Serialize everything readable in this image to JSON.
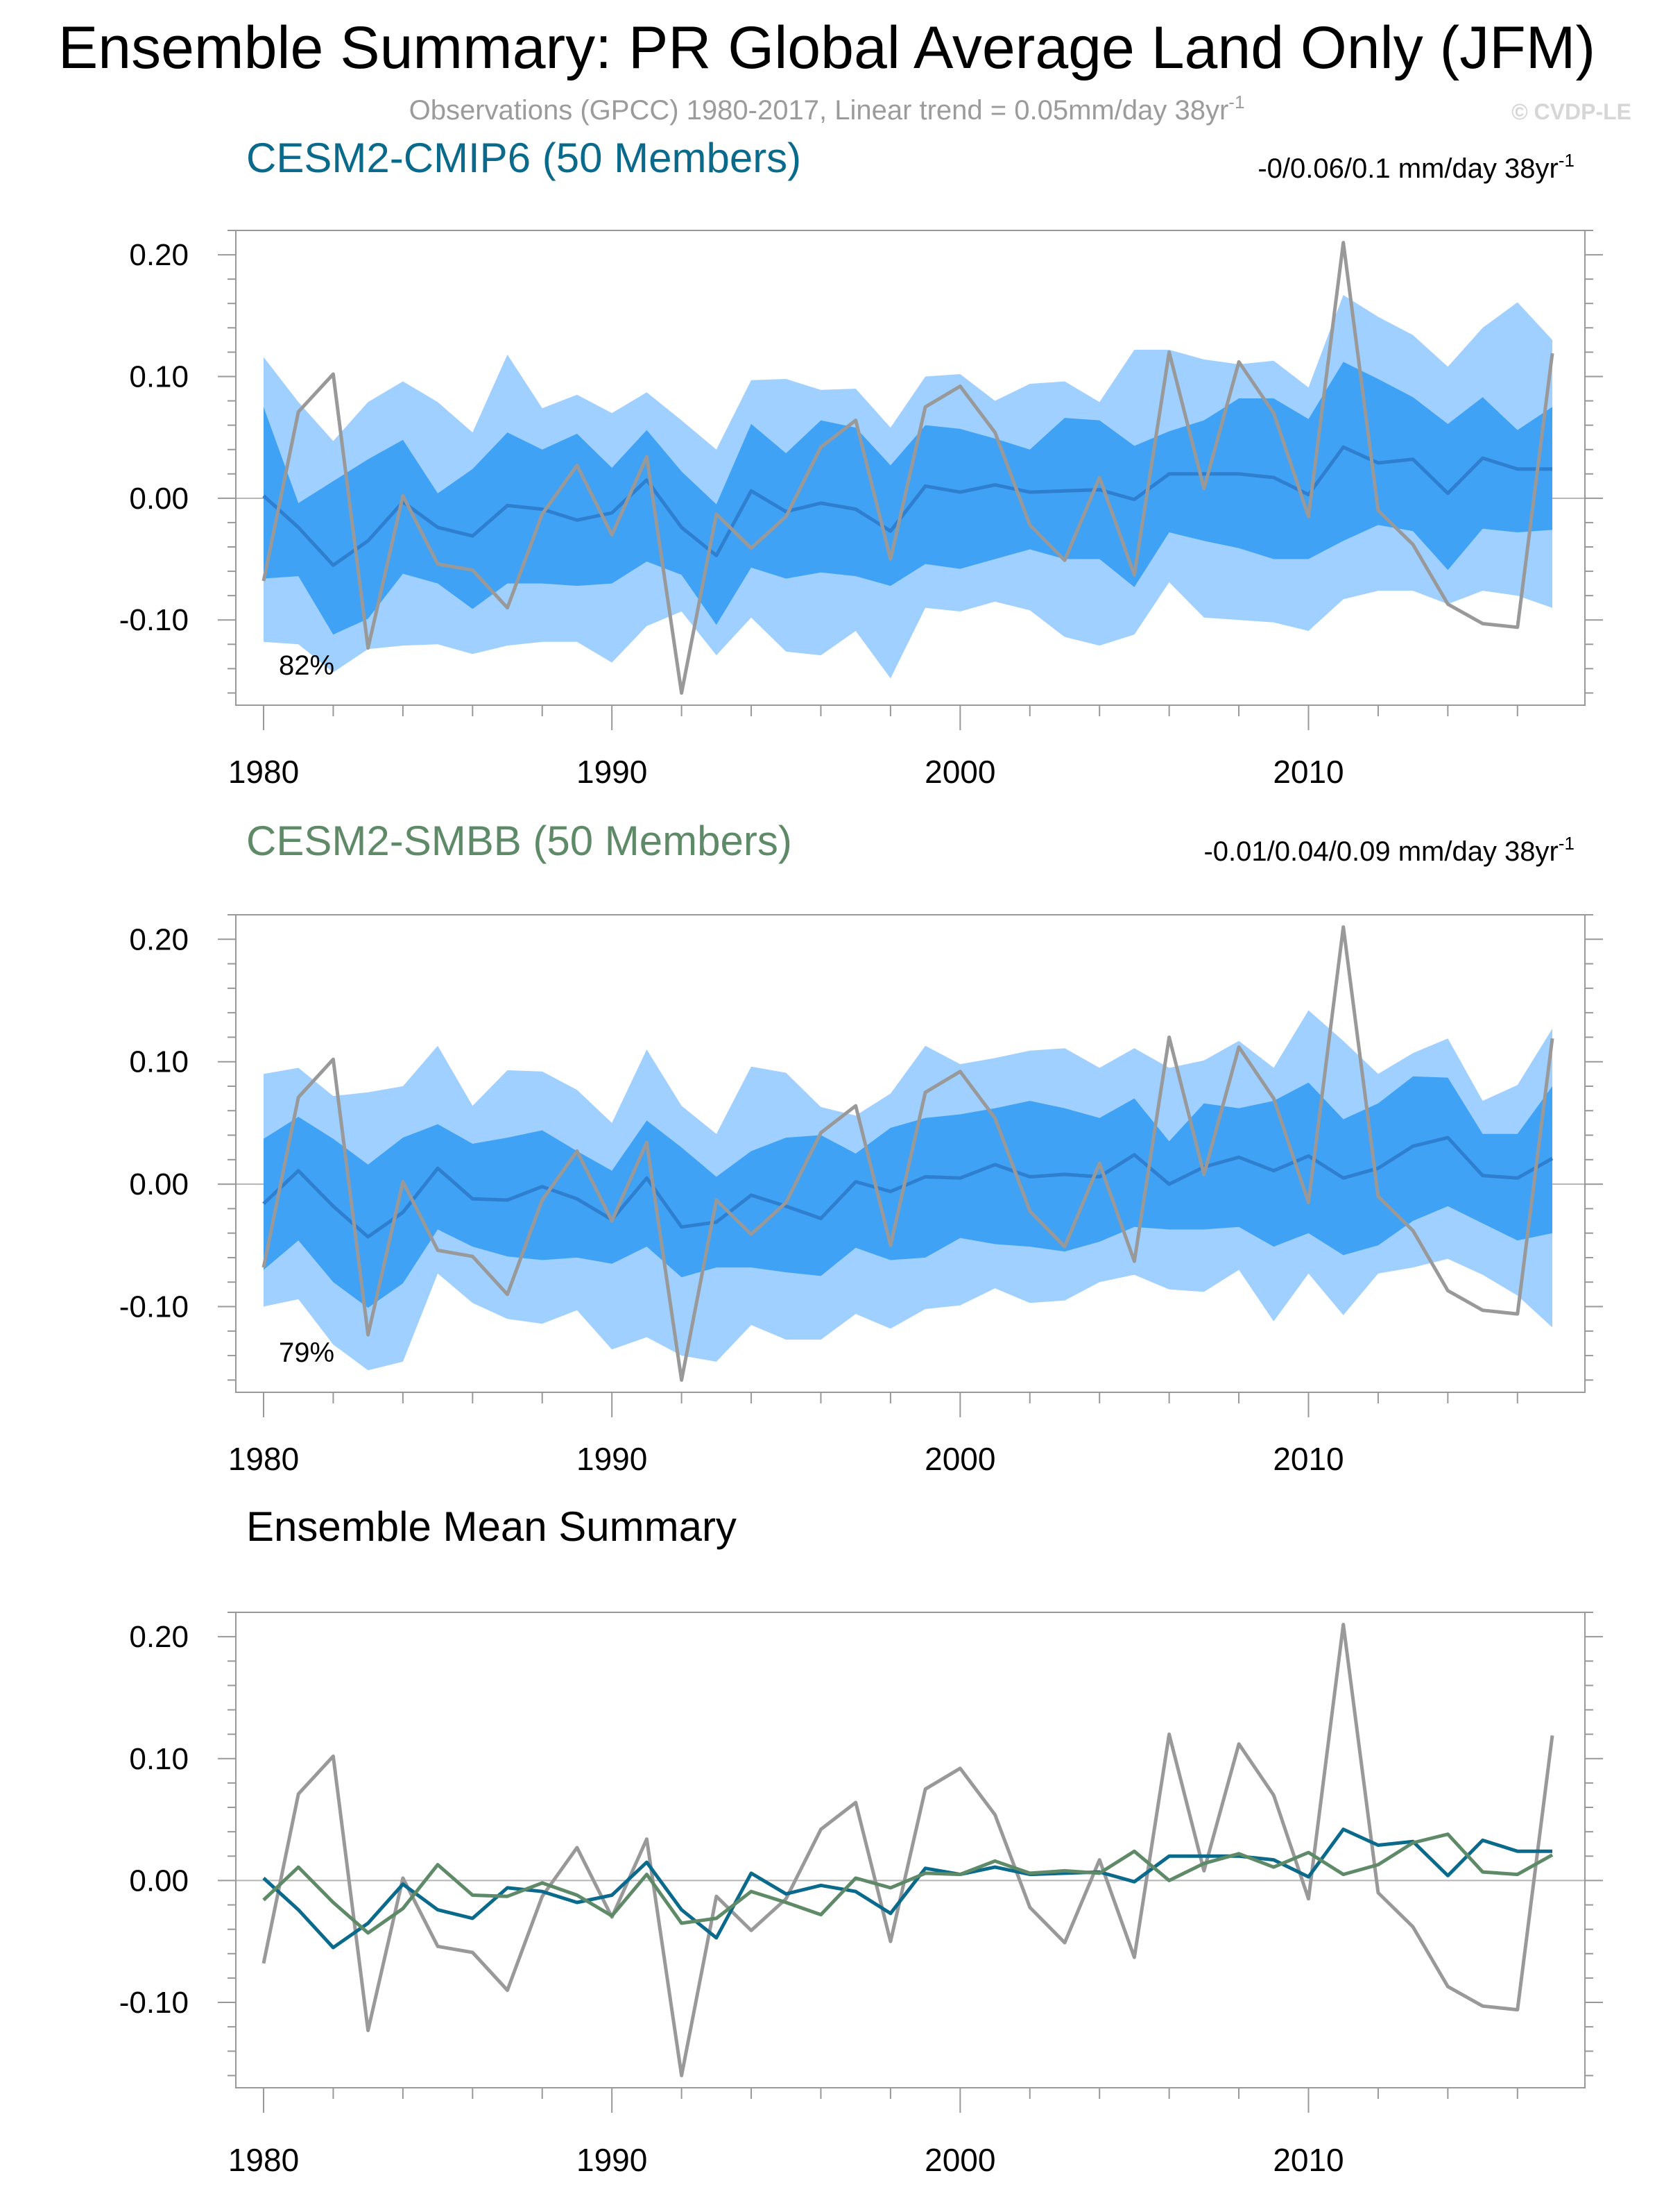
{
  "figure": {
    "title": "Ensemble Summary: PR Global Average Land Only (JFM)",
    "subtitle": "Observations (GPCC) 1980-2017, Linear trend = 0.05mm/day 38yr",
    "subtitle_sup": "-1",
    "watermark": "© CVDP-LE"
  },
  "colors": {
    "spread_outer": "#9fd0ff",
    "spread_inner": "#3fa2f5",
    "ens_mean_band": "#2f7fd0",
    "obs": "#999999",
    "cmip6": "#0a6a8c",
    "smbb": "#5e8a68",
    "axis": "#999999",
    "zero_line": "#b5b5b5"
  },
  "chart_data": [
    {
      "type": "area",
      "panel": "cmip6",
      "title": "CESM2-CMIP6 (50 Members)",
      "title_color": "#0a6a8c",
      "trend_label": "-0/0.06/0.1 mm/day 38yr",
      "trend_sup": "-1",
      "percent_label": "82%",
      "xlim": [
        1980,
        2017
      ],
      "ylim": [
        -0.17,
        0.22
      ],
      "xticks": [
        "1980",
        "1990",
        "2000",
        "2010"
      ],
      "yticks": [
        "0.20",
        "0.10",
        "0.00",
        "-0.10"
      ],
      "x": [
        1980,
        1981,
        1982,
        1983,
        1984,
        1985,
        1986,
        1987,
        1988,
        1989,
        1990,
        1991,
        1992,
        1993,
        1994,
        1995,
        1996,
        1997,
        1998,
        1999,
        2000,
        2001,
        2002,
        2003,
        2004,
        2005,
        2006,
        2007,
        2008,
        2009,
        2010,
        2011,
        2012,
        2013,
        2014,
        2015,
        2016,
        2017
      ],
      "outer_upper": [
        0.116,
        0.079,
        0.047,
        0.079,
        0.096,
        0.079,
        0.054,
        0.118,
        0.074,
        0.085,
        0.07,
        0.087,
        0.064,
        0.04,
        0.097,
        0.098,
        0.089,
        0.09,
        0.058,
        0.1,
        0.102,
        0.08,
        0.094,
        0.096,
        0.079,
        0.122,
        0.122,
        0.114,
        0.11,
        0.113,
        0.091,
        0.167,
        0.149,
        0.134,
        0.108,
        0.14,
        0.161,
        0.13
      ],
      "outer_lower": [
        -0.118,
        -0.12,
        -0.143,
        -0.124,
        -0.121,
        -0.12,
        -0.128,
        -0.121,
        -0.118,
        -0.118,
        -0.135,
        -0.105,
        -0.093,
        -0.129,
        -0.098,
        -0.126,
        -0.129,
        -0.109,
        -0.148,
        -0.09,
        -0.093,
        -0.085,
        -0.092,
        -0.114,
        -0.121,
        -0.112,
        -0.069,
        -0.098,
        -0.1,
        -0.102,
        -0.109,
        -0.083,
        -0.076,
        -0.076,
        -0.087,
        -0.076,
        -0.08,
        -0.09
      ],
      "inner_upper": [
        0.075,
        -0.004,
        0.014,
        0.032,
        0.048,
        0.004,
        0.024,
        0.054,
        0.04,
        0.053,
        0.025,
        0.056,
        0.022,
        -0.005,
        0.061,
        0.037,
        0.064,
        0.058,
        0.027,
        0.06,
        0.057,
        0.049,
        0.04,
        0.066,
        0.064,
        0.043,
        0.055,
        0.064,
        0.082,
        0.082,
        0.065,
        0.112,
        0.098,
        0.083,
        0.061,
        0.083,
        0.056,
        0.075
      ],
      "inner_lower": [
        -0.066,
        -0.064,
        -0.112,
        -0.099,
        -0.062,
        -0.07,
        -0.091,
        -0.07,
        -0.07,
        -0.072,
        -0.07,
        -0.052,
        -0.063,
        -0.104,
        -0.057,
        -0.066,
        -0.061,
        -0.064,
        -0.072,
        -0.054,
        -0.058,
        -0.05,
        -0.042,
        -0.05,
        -0.05,
        -0.073,
        -0.028,
        -0.035,
        -0.041,
        -0.05,
        -0.05,
        -0.035,
        -0.022,
        -0.027,
        -0.059,
        -0.025,
        -0.028,
        -0.026
      ],
      "ens_mean": [
        0.002,
        -0.024,
        -0.055,
        -0.035,
        -0.003,
        -0.024,
        -0.031,
        -0.006,
        -0.009,
        -0.018,
        -0.012,
        0.015,
        -0.024,
        -0.047,
        0.006,
        -0.011,
        -0.004,
        -0.009,
        -0.027,
        0.01,
        0.005,
        0.011,
        0.005,
        0.006,
        0.007,
        -0.001,
        0.02,
        0.02,
        0.02,
        0.017,
        0.003,
        0.042,
        0.029,
        0.032,
        0.004,
        0.033,
        0.024,
        0.024
      ],
      "obs": [
        -0.068,
        0.071,
        0.102,
        -0.123,
        0.002,
        -0.054,
        -0.059,
        -0.09,
        -0.013,
        0.027,
        -0.03,
        0.034,
        -0.16,
        -0.013,
        -0.041,
        -0.015,
        0.042,
        0.064,
        -0.05,
        0.075,
        0.092,
        0.054,
        -0.022,
        -0.051,
        0.017,
        -0.063,
        0.12,
        0.008,
        0.112,
        0.07,
        -0.015,
        0.21,
        -0.01,
        -0.038,
        -0.087,
        -0.103,
        -0.106,
        0.119
      ]
    },
    {
      "type": "area",
      "panel": "smbb",
      "title": "CESM2-SMBB (50 Members)",
      "title_color": "#5e8a68",
      "trend_label": "-0.01/0.04/0.09 mm/day 38yr",
      "trend_sup": "-1",
      "percent_label": "79%",
      "xlim": [
        1980,
        2017
      ],
      "ylim": [
        -0.17,
        0.22
      ],
      "xticks": [
        "1980",
        "1990",
        "2000",
        "2010"
      ],
      "yticks": [
        "0.20",
        "0.10",
        "0.00",
        "-0.10"
      ],
      "x": [
        1980,
        1981,
        1982,
        1983,
        1984,
        1985,
        1986,
        1987,
        1988,
        1989,
        1990,
        1991,
        1992,
        1993,
        1994,
        1995,
        1996,
        1997,
        1998,
        1999,
        2000,
        2001,
        2002,
        2003,
        2004,
        2005,
        2006,
        2007,
        2008,
        2009,
        2010,
        2011,
        2012,
        2013,
        2014,
        2015,
        2016,
        2017
      ],
      "outer_upper": [
        0.09,
        0.095,
        0.072,
        0.075,
        0.08,
        0.113,
        0.064,
        0.093,
        0.092,
        0.077,
        0.05,
        0.11,
        0.064,
        0.041,
        0.096,
        0.091,
        0.063,
        0.056,
        0.074,
        0.113,
        0.098,
        0.103,
        0.109,
        0.111,
        0.095,
        0.111,
        0.095,
        0.101,
        0.117,
        0.095,
        0.142,
        0.117,
        0.09,
        0.107,
        0.119,
        0.068,
        0.081,
        0.127
      ],
      "outer_lower": [
        -0.1,
        -0.094,
        -0.131,
        -0.152,
        -0.145,
        -0.073,
        -0.097,
        -0.11,
        -0.114,
        -0.103,
        -0.135,
        -0.125,
        -0.14,
        -0.145,
        -0.115,
        -0.127,
        -0.127,
        -0.106,
        -0.118,
        -0.102,
        -0.099,
        -0.085,
        -0.097,
        -0.095,
        -0.08,
        -0.074,
        -0.086,
        -0.088,
        -0.07,
        -0.112,
        -0.073,
        -0.107,
        -0.073,
        -0.068,
        -0.061,
        -0.074,
        -0.091,
        -0.117
      ],
      "inner_upper": [
        0.037,
        0.055,
        0.037,
        0.016,
        0.038,
        0.049,
        0.033,
        0.038,
        0.044,
        0.027,
        0.011,
        0.052,
        0.03,
        0.006,
        0.027,
        0.038,
        0.04,
        0.025,
        0.046,
        0.054,
        0.057,
        0.062,
        0.068,
        0.062,
        0.054,
        0.07,
        0.035,
        0.066,
        0.062,
        0.068,
        0.083,
        0.053,
        0.066,
        0.088,
        0.087,
        0.041,
        0.041,
        0.08
      ],
      "inner_lower": [
        -0.07,
        -0.046,
        -0.08,
        -0.101,
        -0.081,
        -0.037,
        -0.051,
        -0.059,
        -0.062,
        -0.06,
        -0.065,
        -0.051,
        -0.076,
        -0.068,
        -0.068,
        -0.072,
        -0.075,
        -0.052,
        -0.062,
        -0.06,
        -0.044,
        -0.049,
        -0.051,
        -0.055,
        -0.047,
        -0.035,
        -0.037,
        -0.037,
        -0.035,
        -0.051,
        -0.04,
        -0.058,
        -0.05,
        -0.03,
        -0.018,
        -0.032,
        -0.046,
        -0.04
      ],
      "ens_mean": [
        -0.016,
        0.011,
        -0.018,
        -0.043,
        -0.023,
        0.013,
        -0.012,
        -0.013,
        -0.002,
        -0.012,
        -0.029,
        0.005,
        -0.035,
        -0.031,
        -0.009,
        -0.018,
        -0.028,
        0.002,
        -0.006,
        0.006,
        0.005,
        0.016,
        0.006,
        0.008,
        0.006,
        0.024,
        0.0,
        0.014,
        0.022,
        0.011,
        0.023,
        0.005,
        0.013,
        0.031,
        0.038,
        0.007,
        0.005,
        0.021
      ],
      "obs": [
        -0.068,
        0.071,
        0.102,
        -0.123,
        0.002,
        -0.054,
        -0.059,
        -0.09,
        -0.013,
        0.027,
        -0.03,
        0.034,
        -0.16,
        -0.013,
        -0.041,
        -0.015,
        0.042,
        0.064,
        -0.05,
        0.075,
        0.092,
        0.054,
        -0.022,
        -0.051,
        0.017,
        -0.063,
        0.12,
        0.008,
        0.112,
        0.07,
        -0.015,
        0.21,
        -0.01,
        -0.038,
        -0.087,
        -0.103,
        -0.106,
        0.119
      ]
    },
    {
      "type": "line",
      "panel": "summary",
      "title": "Ensemble Mean Summary",
      "title_color": "#000000",
      "xlim": [
        1980,
        2017
      ],
      "ylim": [
        -0.17,
        0.22
      ],
      "xticks": [
        "1980",
        "1990",
        "2000",
        "2010"
      ],
      "yticks": [
        "0.20",
        "0.10",
        "0.00",
        "-0.10"
      ],
      "x": [
        1980,
        1981,
        1982,
        1983,
        1984,
        1985,
        1986,
        1987,
        1988,
        1989,
        1990,
        1991,
        1992,
        1993,
        1994,
        1995,
        1996,
        1997,
        1998,
        1999,
        2000,
        2001,
        2002,
        2003,
        2004,
        2005,
        2006,
        2007,
        2008,
        2009,
        2010,
        2011,
        2012,
        2013,
        2014,
        2015,
        2016,
        2017
      ],
      "series": [
        {
          "name": "Observations (GPCC)",
          "color": "#999999",
          "values": [
            -0.068,
            0.071,
            0.102,
            -0.123,
            0.002,
            -0.054,
            -0.059,
            -0.09,
            -0.013,
            0.027,
            -0.03,
            0.034,
            -0.16,
            -0.013,
            -0.041,
            -0.015,
            0.042,
            0.064,
            -0.05,
            0.075,
            0.092,
            0.054,
            -0.022,
            -0.051,
            0.017,
            -0.063,
            0.12,
            0.008,
            0.112,
            0.07,
            -0.015,
            0.21,
            -0.01,
            -0.038,
            -0.087,
            -0.103,
            -0.106,
            0.119
          ]
        },
        {
          "name": "CESM2-CMIP6",
          "color": "#0a6a8c",
          "values": [
            0.002,
            -0.024,
            -0.055,
            -0.035,
            -0.003,
            -0.024,
            -0.031,
            -0.006,
            -0.009,
            -0.018,
            -0.012,
            0.015,
            -0.024,
            -0.047,
            0.006,
            -0.011,
            -0.004,
            -0.009,
            -0.027,
            0.01,
            0.005,
            0.011,
            0.005,
            0.006,
            0.007,
            -0.001,
            0.02,
            0.02,
            0.02,
            0.017,
            0.003,
            0.042,
            0.029,
            0.032,
            0.004,
            0.033,
            0.024,
            0.024
          ]
        },
        {
          "name": "CESM2-SMBB",
          "color": "#5e8a68",
          "values": [
            -0.016,
            0.011,
            -0.018,
            -0.043,
            -0.023,
            0.013,
            -0.012,
            -0.013,
            -0.002,
            -0.012,
            -0.029,
            0.005,
            -0.035,
            -0.031,
            -0.009,
            -0.018,
            -0.028,
            0.002,
            -0.006,
            0.006,
            0.005,
            0.016,
            0.006,
            0.008,
            0.006,
            0.024,
            0.0,
            0.014,
            0.022,
            0.011,
            0.023,
            0.005,
            0.013,
            0.031,
            0.038,
            0.007,
            0.005,
            0.021
          ]
        }
      ]
    }
  ]
}
